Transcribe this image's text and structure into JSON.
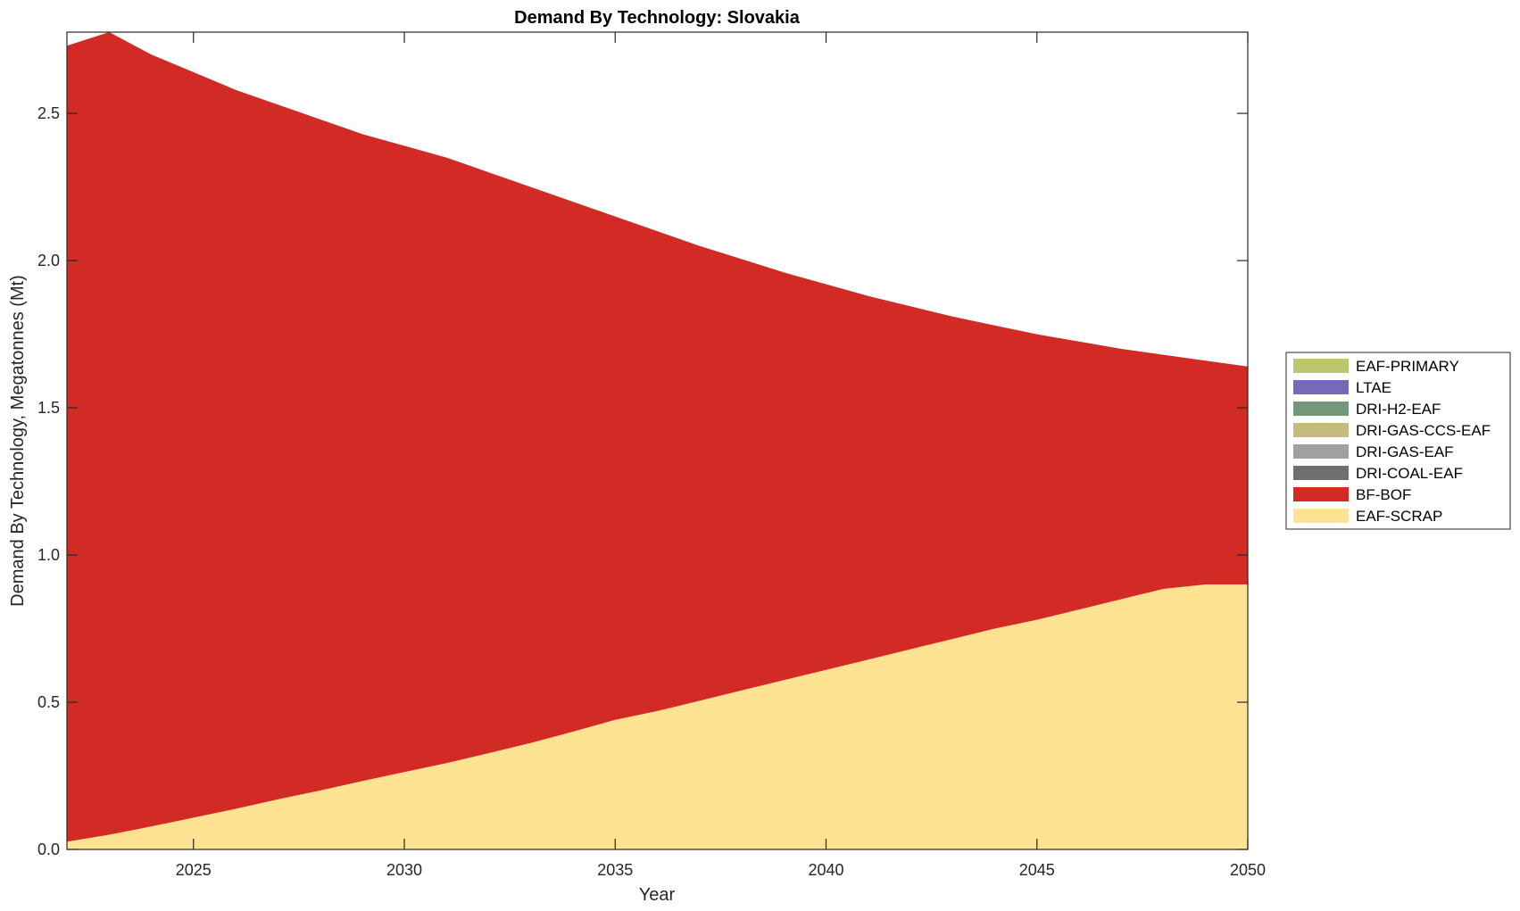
{
  "chart_data": {
    "type": "area",
    "stacked": true,
    "title": "Demand By Technology: Slovakia",
    "xlabel": "Year",
    "ylabel": "Demand By Technology, Megatonnes (Mt)",
    "xlim": [
      2022,
      2050
    ],
    "ylim": [
      0,
      2.776
    ],
    "xticks": [
      2025,
      2030,
      2035,
      2040,
      2045,
      2050
    ],
    "yticks": [
      "0.0",
      "0.5",
      "1.0",
      "1.5",
      "2.0",
      "2.5"
    ],
    "legend_position": "outside-right",
    "x": [
      2022,
      2023,
      2024,
      2025,
      2026,
      2027,
      2028,
      2029,
      2030,
      2031,
      2032,
      2033,
      2034,
      2035,
      2036,
      2037,
      2038,
      2039,
      2040,
      2041,
      2042,
      2043,
      2044,
      2045,
      2046,
      2047,
      2048,
      2049,
      2050
    ],
    "series": [
      {
        "name": "EAF-SCRAP",
        "color": "#fde392",
        "values": [
          0.026,
          0.05,
          0.078,
          0.108,
          0.138,
          0.17,
          0.2,
          0.232,
          0.263,
          0.293,
          0.327,
          0.362,
          0.4,
          0.44,
          0.47,
          0.505,
          0.54,
          0.575,
          0.61,
          0.645,
          0.68,
          0.715,
          0.75,
          0.78,
          0.815,
          0.85,
          0.885,
          0.9,
          0.9
        ]
      },
      {
        "name": "BF-BOF",
        "color": "#d22b25",
        "values": [
          2.704,
          2.726,
          2.622,
          2.532,
          2.442,
          2.36,
          2.28,
          2.198,
          2.127,
          2.057,
          1.973,
          1.888,
          1.8,
          1.71,
          1.63,
          1.545,
          1.465,
          1.385,
          1.31,
          1.235,
          1.165,
          1.095,
          1.03,
          0.97,
          0.91,
          0.85,
          0.795,
          0.76,
          0.74
        ]
      },
      {
        "name": "DRI-COAL-EAF",
        "color": "#6f6f6f",
        "values": [
          0,
          0,
          0,
          0,
          0,
          0,
          0,
          0,
          0,
          0,
          0,
          0,
          0,
          0,
          0,
          0,
          0,
          0,
          0,
          0,
          0,
          0,
          0,
          0,
          0,
          0,
          0,
          0,
          0
        ]
      },
      {
        "name": "DRI-GAS-EAF",
        "color": "#a0a09f",
        "values": [
          0,
          0,
          0,
          0,
          0,
          0,
          0,
          0,
          0,
          0,
          0,
          0,
          0,
          0,
          0,
          0,
          0,
          0,
          0,
          0,
          0,
          0,
          0,
          0,
          0,
          0,
          0,
          0,
          0
        ]
      },
      {
        "name": "DRI-GAS-CCS-EAF",
        "color": "#c6bb7f",
        "values": [
          0,
          0,
          0,
          0,
          0,
          0,
          0,
          0,
          0,
          0,
          0,
          0,
          0,
          0,
          0,
          0,
          0,
          0,
          0,
          0,
          0,
          0,
          0,
          0,
          0,
          0,
          0,
          0,
          0
        ]
      },
      {
        "name": "DRI-H2-EAF",
        "color": "#73977b",
        "values": [
          0,
          0,
          0,
          0,
          0,
          0,
          0,
          0,
          0,
          0,
          0,
          0,
          0,
          0,
          0,
          0,
          0,
          0,
          0,
          0,
          0,
          0,
          0,
          0,
          0,
          0,
          0,
          0,
          0
        ]
      },
      {
        "name": "LTAE",
        "color": "#7569b8",
        "values": [
          0,
          0,
          0,
          0,
          0,
          0,
          0,
          0,
          0,
          0,
          0,
          0,
          0,
          0,
          0,
          0,
          0,
          0,
          0,
          0,
          0,
          0,
          0,
          0,
          0,
          0,
          0,
          0,
          0
        ]
      },
      {
        "name": "EAF-PRIMARY",
        "color": "#bcc76b",
        "values": [
          0,
          0,
          0,
          0,
          0,
          0,
          0,
          0,
          0,
          0,
          0,
          0,
          0,
          0,
          0,
          0,
          0,
          0,
          0,
          0,
          0,
          0,
          0,
          0,
          0,
          0,
          0,
          0,
          0
        ]
      }
    ],
    "legend_order": [
      "EAF-PRIMARY",
      "LTAE",
      "DRI-H2-EAF",
      "DRI-GAS-CCS-EAF",
      "DRI-GAS-EAF",
      "DRI-COAL-EAF",
      "BF-BOF",
      "EAF-SCRAP"
    ]
  }
}
